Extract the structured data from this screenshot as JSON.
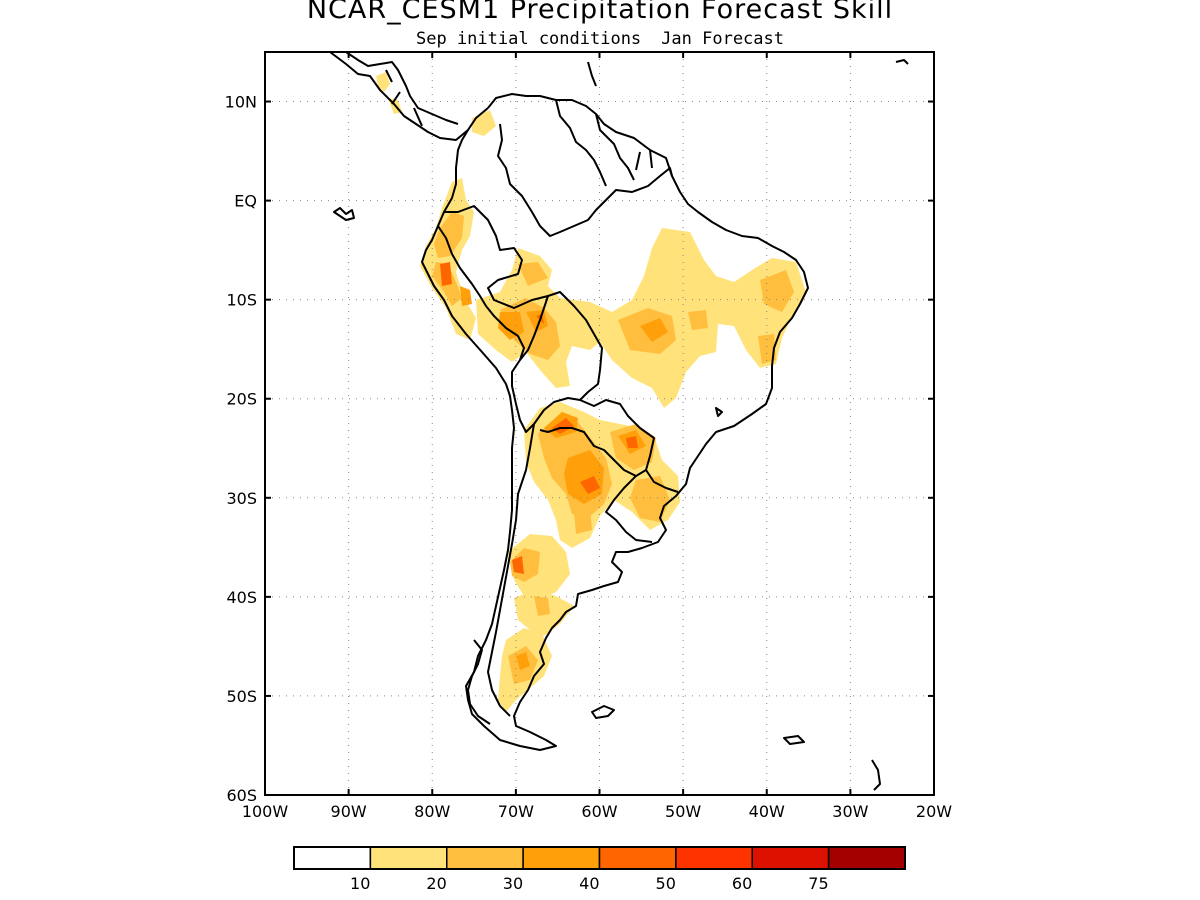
{
  "title": "NCAR_CESM1 Precipitation Forecast Skill",
  "subtitle": {
    "left": "Sep initial conditions",
    "right": "Jan Forecast"
  },
  "map": {
    "lon_range": [
      -100,
      -20
    ],
    "lat_range": [
      -60,
      15
    ],
    "grid": "dotted",
    "lat_ticks": [
      {
        "value": 10,
        "label": "10N"
      },
      {
        "value": 0,
        "label": "EQ"
      },
      {
        "value": -10,
        "label": "10S"
      },
      {
        "value": -20,
        "label": "20S"
      },
      {
        "value": -30,
        "label": "30S"
      },
      {
        "value": -40,
        "label": "40S"
      },
      {
        "value": -50,
        "label": "50S"
      },
      {
        "value": -60,
        "label": "60S"
      }
    ],
    "lon_ticks": [
      {
        "value": -100,
        "label": "100W"
      },
      {
        "value": -90,
        "label": "90W"
      },
      {
        "value": -80,
        "label": "80W"
      },
      {
        "value": -70,
        "label": "70W"
      },
      {
        "value": -60,
        "label": "60W"
      },
      {
        "value": -50,
        "label": "50W"
      },
      {
        "value": -40,
        "label": "40W"
      },
      {
        "value": -30,
        "label": "30W"
      },
      {
        "value": -20,
        "label": "20W"
      }
    ]
  },
  "colorbar": {
    "colors": [
      "#ffffff",
      "#ffe27a",
      "#ffbe3d",
      "#ffa00a",
      "#ff6600",
      "#ff3300",
      "#dd1100",
      "#a50000"
    ],
    "labels": [
      "10",
      "20",
      "30",
      "40",
      "50",
      "60",
      "75"
    ]
  }
}
